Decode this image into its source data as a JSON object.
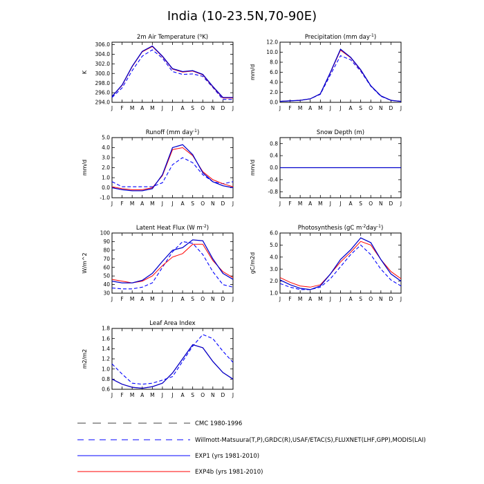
{
  "figure": {
    "title": "India (10-23.5N,70-90E)",
    "months": [
      "J",
      "F",
      "M",
      "A",
      "M",
      "J",
      "J",
      "A",
      "S",
      "O",
      "N",
      "D",
      "J"
    ]
  },
  "legend": [
    {
      "label": "CMC 1980-1996",
      "color": "#000000",
      "dash": "long"
    },
    {
      "label": "Willmott-Matsuura(T,P),GRDC(R),USAF/ETAC(S),FLUXNET(LHF,GPP),MODIS(LAI)",
      "color": "#0000ff",
      "dash": "medium"
    },
    {
      "label": "EXP1 (yrs 1981-2010)",
      "color": "#0000ff",
      "dash": "solid"
    },
    {
      "label": "EXP4b (yrs 1981-2010)",
      "color": "#ff0000",
      "dash": "solid"
    }
  ],
  "chart_data": [
    {
      "type": "line",
      "title": "2m Air Temperature (°K)",
      "title_parts": [
        "2m Air Temperature (",
        "o",
        "K)"
      ],
      "ylabel": "K",
      "ylim": [
        294,
        306.5
      ],
      "yticks": [
        294.0,
        296.0,
        298.0,
        300.0,
        302.0,
        304.0,
        306.0
      ],
      "series": [
        {
          "style": "obs",
          "values": [
            295.0,
            297.0,
            300.6,
            303.6,
            304.9,
            303.2,
            300.4,
            299.8,
            299.9,
            299.4,
            297.1,
            294.6,
            294.6
          ]
        },
        {
          "style": "exp1",
          "values": [
            295.2,
            297.6,
            301.5,
            304.6,
            305.7,
            303.6,
            301.0,
            300.4,
            300.6,
            299.8,
            297.3,
            295.0,
            295.0
          ]
        },
        {
          "style": "exp4b",
          "values": [
            295.2,
            297.5,
            301.4,
            304.5,
            305.6,
            303.5,
            300.9,
            300.3,
            300.5,
            299.7,
            297.2,
            294.9,
            294.9
          ]
        }
      ]
    },
    {
      "type": "line",
      "title": "Precipitation (mm day-1)",
      "title_parts": [
        "Precipitation (mm day",
        "-1",
        ")"
      ],
      "ylabel": "mm/d",
      "ylim": [
        0,
        12
      ],
      "yticks": [
        0,
        2,
        4,
        6,
        8,
        10,
        12
      ],
      "series": [
        {
          "style": "obs",
          "values": [
            0.2,
            0.3,
            0.4,
            0.7,
            1.6,
            5.5,
            9.3,
            8.5,
            6.2,
            3.2,
            1.2,
            0.4,
            0.2
          ]
        },
        {
          "style": "exp1",
          "values": [
            0.2,
            0.3,
            0.4,
            0.7,
            1.7,
            6.0,
            10.6,
            9.0,
            6.5,
            3.3,
            1.3,
            0.4,
            0.2
          ]
        },
        {
          "style": "exp4b",
          "values": [
            0.2,
            0.3,
            0.4,
            0.7,
            1.7,
            5.9,
            10.4,
            8.9,
            6.4,
            3.3,
            1.3,
            0.4,
            0.2
          ]
        }
      ]
    },
    {
      "type": "line",
      "title": "Runoff (mm day-1)",
      "title_parts": [
        "Runoff (mm day",
        "-1",
        ")"
      ],
      "ylabel": "mm/d",
      "ylim": [
        -1,
        5
      ],
      "yticks": [
        -1.0,
        0.0,
        1.0,
        2.0,
        3.0,
        4.0,
        5.0
      ],
      "series": [
        {
          "style": "obs",
          "values": [
            0.6,
            0.1,
            0.1,
            0.1,
            0.1,
            0.5,
            2.3,
            3.0,
            2.5,
            1.3,
            0.6,
            0.4,
            0.6
          ]
        },
        {
          "style": "exp1",
          "values": [
            0.0,
            -0.2,
            -0.3,
            -0.3,
            -0.1,
            1.3,
            4.0,
            4.3,
            3.3,
            1.5,
            0.6,
            0.2,
            0.0
          ]
        },
        {
          "style": "exp4b",
          "values": [
            0.1,
            -0.1,
            -0.2,
            -0.2,
            0.0,
            1.2,
            3.8,
            4.0,
            3.2,
            1.6,
            0.8,
            0.4,
            0.1
          ]
        }
      ]
    },
    {
      "type": "line",
      "title": "Snow Depth (m)",
      "title_parts": [
        "Snow Depth (m)"
      ],
      "ylabel": "mm/d",
      "ylim": [
        -1,
        1
      ],
      "yticks": [
        -0.8,
        -0.4,
        0.0,
        0.4,
        0.8
      ],
      "series": [
        {
          "style": "obs",
          "values": [
            0,
            0,
            0,
            0,
            0,
            0,
            0,
            0,
            0,
            0,
            0,
            0,
            0
          ]
        },
        {
          "style": "exp1",
          "values": [
            0,
            0,
            0,
            0,
            0,
            0,
            0,
            0,
            0,
            0,
            0,
            0,
            0
          ]
        },
        {
          "style": "exp4b",
          "values": [
            0,
            0,
            0,
            0,
            0,
            0,
            0,
            0,
            0,
            0,
            0,
            0,
            0
          ]
        }
      ]
    },
    {
      "type": "line",
      "title": "Latent Heat Flux (W m-2)",
      "title_parts": [
        "Latent Heat Flux (W m",
        "-2",
        ")"
      ],
      "ylabel": "W/m^2",
      "ylim": [
        30,
        100
      ],
      "yticks": [
        30,
        40,
        50,
        60,
        70,
        80,
        90,
        100
      ],
      "series": [
        {
          "style": "obs",
          "values": [
            36,
            35,
            35,
            37,
            42,
            60,
            78,
            90,
            88,
            75,
            55,
            40,
            37
          ]
        },
        {
          "style": "exp1",
          "values": [
            44,
            42,
            42,
            45,
            53,
            67,
            80,
            83,
            92,
            91,
            70,
            53,
            46
          ]
        },
        {
          "style": "exp4b",
          "values": [
            46,
            44,
            42,
            44,
            50,
            62,
            72,
            76,
            87,
            87,
            68,
            55,
            48
          ]
        }
      ]
    },
    {
      "type": "line",
      "title": "Photosynthesis (gC m-2day-1)",
      "title_parts": [
        "Photosynthesis (gC m",
        "-2",
        "day",
        "-1",
        ")"
      ],
      "ylabel": "gC/m2d",
      "ylim": [
        1,
        6
      ],
      "yticks": [
        1.0,
        2.0,
        3.0,
        4.0,
        5.0,
        6.0
      ],
      "series": [
        {
          "style": "obs",
          "values": [
            1.8,
            1.5,
            1.3,
            1.3,
            1.5,
            2.2,
            3.2,
            4.2,
            5.0,
            4.2,
            3.0,
            2.1,
            1.6
          ]
        },
        {
          "style": "exp1",
          "values": [
            2.1,
            1.7,
            1.4,
            1.3,
            1.6,
            2.6,
            3.8,
            4.6,
            5.6,
            5.2,
            3.8,
            2.6,
            2.0
          ]
        },
        {
          "style": "exp4b",
          "values": [
            2.3,
            1.9,
            1.6,
            1.5,
            1.7,
            2.6,
            3.6,
            4.4,
            5.3,
            5.0,
            3.8,
            2.8,
            2.2
          ]
        }
      ]
    },
    {
      "type": "line",
      "title": "Leaf Area Index",
      "title_parts": [
        "Leaf Area Index"
      ],
      "ylabel": "m2/m2",
      "ylim": [
        0.6,
        1.8
      ],
      "yticks": [
        0.6,
        0.8,
        1.0,
        1.2,
        1.4,
        1.6,
        1.8
      ],
      "series": [
        {
          "style": "obs",
          "values": [
            1.1,
            0.9,
            0.72,
            0.7,
            0.72,
            0.78,
            0.85,
            1.15,
            1.45,
            1.68,
            1.6,
            1.35,
            1.13
          ]
        },
        {
          "style": "exp1",
          "values": [
            0.8,
            0.7,
            0.64,
            0.62,
            0.65,
            0.72,
            0.92,
            1.2,
            1.48,
            1.42,
            1.15,
            0.93,
            0.8
          ]
        },
        {
          "style": "exp4b",
          "values": [
            0.8,
            0.7,
            0.64,
            0.62,
            0.65,
            0.72,
            0.92,
            1.2,
            1.48,
            1.42,
            1.15,
            0.93,
            0.8
          ]
        }
      ]
    }
  ]
}
